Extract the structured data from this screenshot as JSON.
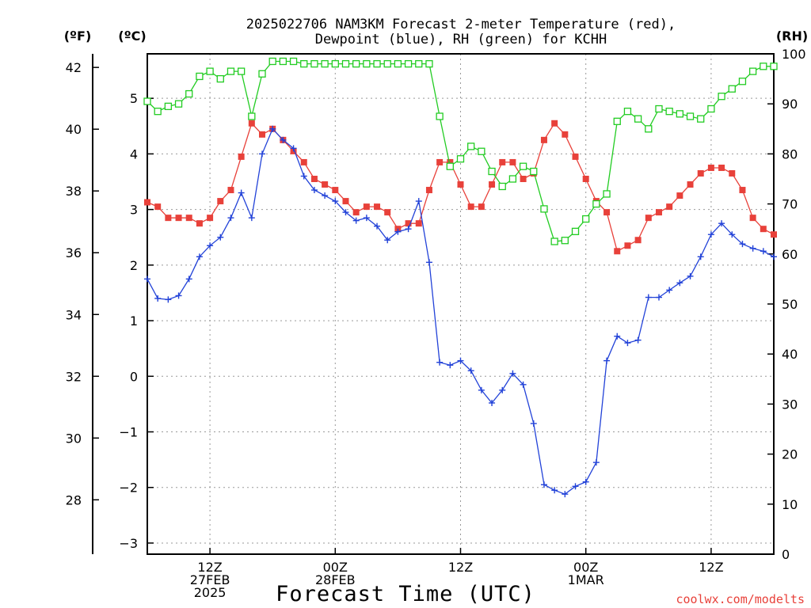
{
  "title_line1": "2025022706 NAM3KM Forecast 2-meter Temperature (red),",
  "title_line2": "Dewpoint (blue), RH (green) for KCHH",
  "xlabel": "Forecast Time (UTC)",
  "credit": "coolwx.com/modelts",
  "chart_data": {
    "type": "line",
    "title": "2025022706 NAM3KM Forecast 2-meter Temperature (red), Dewpoint (blue), RH (green) for KCHH",
    "xlabel": "Forecast Time (UTC)",
    "x_unit": "forecast hour from 2025-02-27 06Z",
    "x": [
      0,
      1,
      2,
      3,
      4,
      5,
      6,
      7,
      8,
      9,
      10,
      11,
      12,
      13,
      14,
      15,
      16,
      17,
      18,
      19,
      20,
      21,
      22,
      23,
      24,
      25,
      26,
      27,
      28,
      29,
      30,
      31,
      32,
      33,
      34,
      35,
      36,
      37,
      38,
      39,
      40,
      41,
      42,
      43,
      44,
      45,
      46,
      47,
      48,
      49,
      50,
      51,
      52,
      53,
      54,
      55,
      56,
      57,
      58,
      59,
      60
    ],
    "xlim": [
      0,
      60
    ],
    "x_ticks": [
      {
        "x": 6,
        "lines": [
          "12Z",
          "27FEB",
          "2025"
        ]
      },
      {
        "x": 18,
        "lines": [
          "00Z",
          "28FEB"
        ]
      },
      {
        "x": 30,
        "lines": [
          "12Z"
        ]
      },
      {
        "x": 42,
        "lines": [
          "00Z",
          "1MAR"
        ]
      },
      {
        "x": 54,
        "lines": [
          "12Z"
        ]
      }
    ],
    "axes": {
      "left_f": {
        "label": "(ºF)",
        "ticks": [
          28,
          30,
          32,
          34,
          36,
          38,
          40,
          42
        ]
      },
      "left_c": {
        "label": "(ºC)",
        "ylim": [
          -3.2,
          5.8
        ],
        "ticks": [
          -3,
          -2,
          -1,
          0,
          1,
          2,
          3,
          4,
          5
        ]
      },
      "right_rh": {
        "label": "(RH)",
        "ylim": [
          0,
          100
        ],
        "ticks": [
          0,
          10,
          20,
          30,
          40,
          50,
          60,
          70,
          80,
          90,
          100
        ]
      }
    },
    "series": [
      {
        "name": "Temperature",
        "axis": "left_c",
        "color": "#e8413a",
        "marker": "filled-square",
        "values": [
          3.13,
          3.05,
          2.85,
          2.85,
          2.85,
          2.75,
          2.85,
          3.15,
          3.35,
          3.95,
          4.55,
          4.35,
          4.45,
          4.25,
          4.05,
          3.85,
          3.55,
          3.45,
          3.35,
          3.15,
          2.95,
          3.05,
          3.05,
          2.95,
          2.65,
          2.75,
          2.75,
          3.35,
          3.85,
          3.85,
          3.45,
          3.05,
          3.05,
          3.45,
          3.85,
          3.85,
          3.55,
          3.65,
          4.25,
          4.55,
          4.35,
          3.95,
          3.55,
          3.15,
          2.95,
          2.25,
          2.35,
          2.45,
          2.85,
          2.95,
          3.05,
          3.25,
          3.45,
          3.65,
          3.75,
          3.75,
          3.65,
          3.35,
          2.85,
          2.65,
          2.55
        ]
      },
      {
        "name": "Dewpoint",
        "axis": "left_c",
        "color": "#2242d8",
        "marker": "plus",
        "values": [
          1.75,
          1.4,
          1.38,
          1.45,
          1.75,
          2.15,
          2.35,
          2.5,
          2.85,
          3.3,
          2.85,
          4.0,
          4.45,
          4.25,
          4.1,
          3.6,
          3.35,
          3.25,
          3.15,
          2.95,
          2.8,
          2.85,
          2.7,
          2.45,
          2.6,
          2.65,
          3.15,
          2.05,
          0.25,
          0.2,
          0.28,
          0.1,
          -0.25,
          -0.48,
          -0.25,
          0.05,
          -0.15,
          -0.85,
          -1.95,
          -2.05,
          -2.12,
          -1.98,
          -1.9,
          -1.55,
          0.28,
          0.72,
          0.6,
          0.65,
          1.42,
          1.42,
          1.55,
          1.68,
          1.8,
          2.15,
          2.55,
          2.75,
          2.55,
          2.38,
          2.3,
          2.25,
          2.15
        ]
      },
      {
        "name": "RH",
        "axis": "right_rh",
        "color": "#22cc22",
        "marker": "open-square",
        "values": [
          90.5,
          88.5,
          89.5,
          90.0,
          92.0,
          95.5,
          96.5,
          95.0,
          96.5,
          96.5,
          87.5,
          96.0,
          98.5,
          98.5,
          98.5,
          98.0,
          98.0,
          98.0,
          98.0,
          98.0,
          98.0,
          98.0,
          98.0,
          98.0,
          98.0,
          98.0,
          98.0,
          98.0,
          87.5,
          77.5,
          79.0,
          81.5,
          80.5,
          76.5,
          73.5,
          75.0,
          77.5,
          76.5,
          69.0,
          62.5,
          62.7,
          64.5,
          67.0,
          70.0,
          72.0,
          86.5,
          88.5,
          87.0,
          85.0,
          89.0,
          88.5,
          88.0,
          87.5,
          87.0,
          89.0,
          91.5,
          93.0,
          94.5,
          96.5,
          97.5,
          97.5
        ]
      }
    ],
    "grid": true
  }
}
